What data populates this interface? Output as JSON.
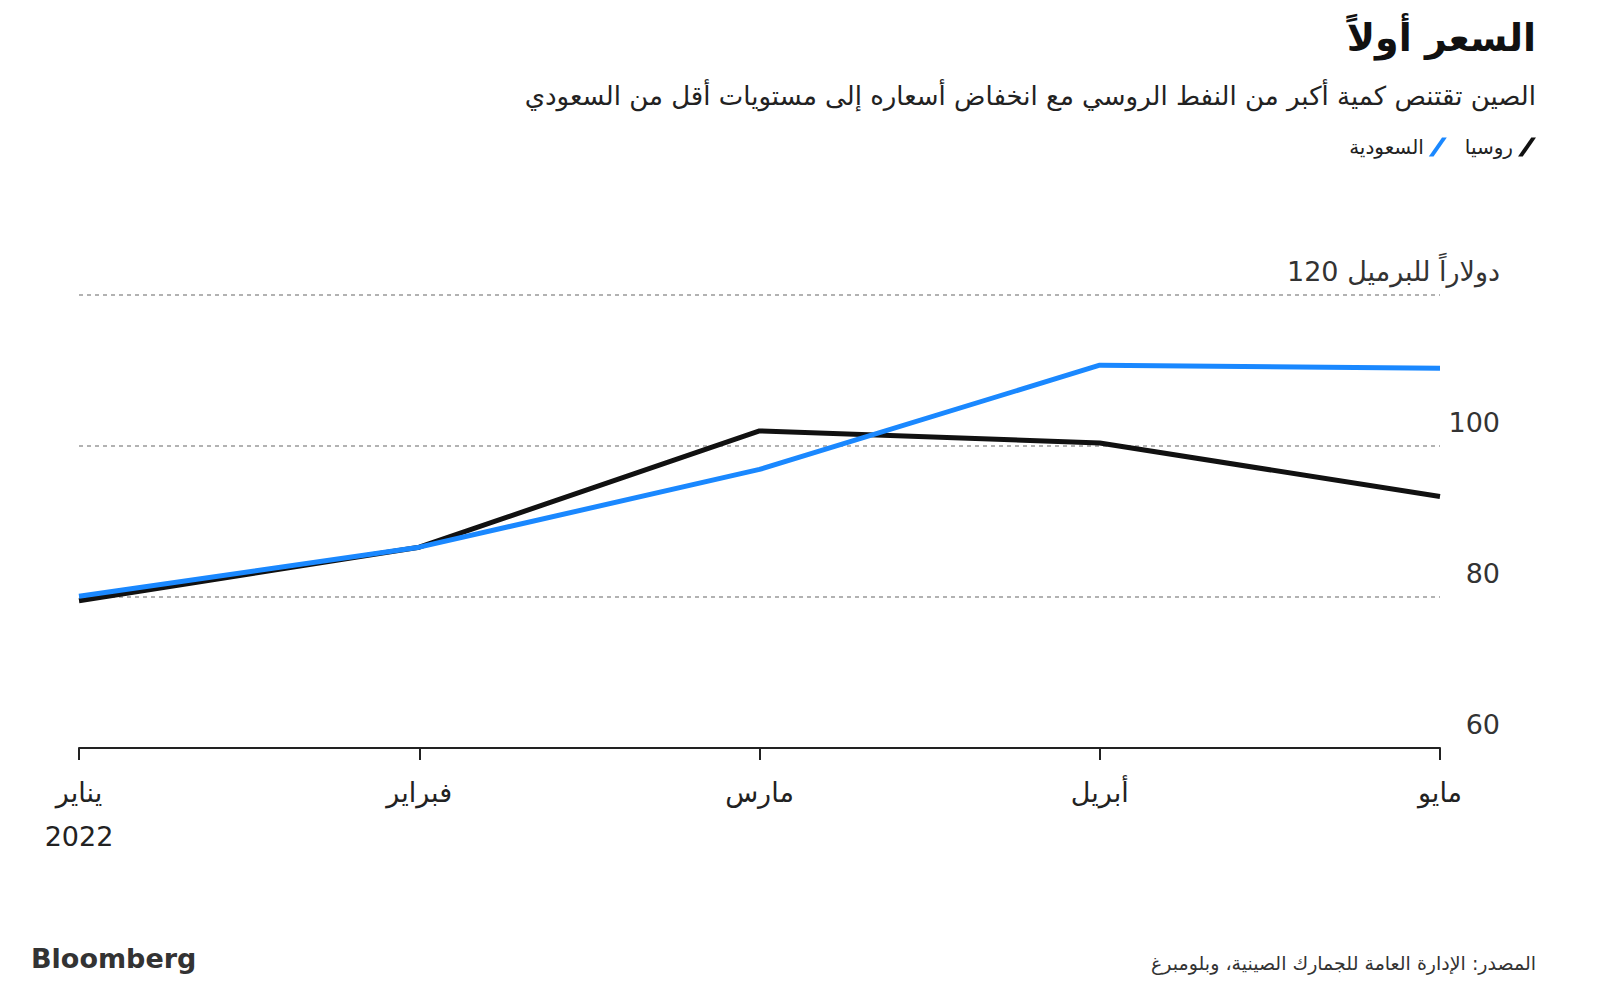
{
  "chart_data": {
    "type": "line",
    "title": "السعر أولاً",
    "subtitle": "الصين تقتنص كمية أكبر من النفط الروسي مع انخفاض أسعاره إلى مستويات أقل من السعودي",
    "categories": [
      "يناير",
      "فبراير",
      "مارس",
      "أبريل",
      "مايو"
    ],
    "year": "2022",
    "series": [
      {
        "name": "روسيا",
        "color": "#111111",
        "values": [
          79.5,
          86.6,
          102.0,
          100.4,
          93.3
        ]
      },
      {
        "name": "السعودية",
        "color": "#1a88ff",
        "values": [
          80.1,
          86.6,
          96.9,
          110.7,
          110.3
        ]
      }
    ],
    "ylim": [
      60,
      120
    ],
    "yticks": [
      60,
      80,
      100,
      {
        "value": 120,
        "label": "120 دولاراً للبرميل"
      }
    ],
    "grid": true,
    "legend": "top-right",
    "source": "المصدر: الإدارة العامة للجمارك الصينية، وبلومبرغ",
    "credit": "Bloomberg"
  }
}
